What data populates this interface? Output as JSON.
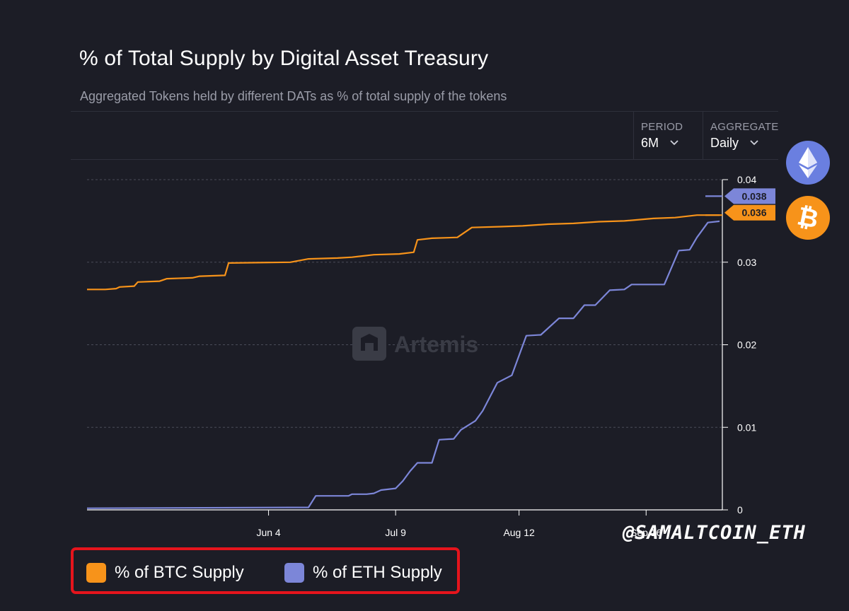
{
  "title": "% of Total Supply by Digital Asset Treasury",
  "subtitle": "Aggregated Tokens held by different DATs as % of total supply of the tokens",
  "controls": {
    "period_label": "PERIOD",
    "period_value": "6M",
    "aggregate_label": "AGGREGATE",
    "aggregate_value": "Daily"
  },
  "watermark": "Artemis",
  "handle": "@SAMALTCOIN_ETH",
  "icons": {
    "eth": "ethereum-logo-icon",
    "btc": "bitcoin-logo-icon",
    "chevron": "chevron-down-icon"
  },
  "legend": {
    "btc_label": "% of BTC Supply",
    "eth_label": "% of ETH Supply"
  },
  "colors": {
    "btc": "#f7931a",
    "eth": "#7c86d8",
    "highlight_box": "#e5141c",
    "background": "#1c1d26"
  },
  "chart_data": {
    "type": "line",
    "title": "% of Total Supply by Digital Asset Treasury",
    "x_tick_labels": [
      "Jun 4",
      "Jul 9",
      "Aug 12",
      "Sep 16"
    ],
    "x_ticks": [
      "2025-06-04",
      "2025-07-09",
      "2025-08-12",
      "2025-09-16"
    ],
    "xlim": [
      "2025-04-15",
      "2025-10-07"
    ],
    "y_tick_labels": [
      "0.04",
      "0.03",
      "0.02",
      "0.01",
      "0"
    ],
    "ylim": [
      0,
      0.04
    ],
    "grid": true,
    "y_axis_side": "right",
    "legend_position": "bottom-left",
    "last_value_labels": {
      "eth": "0.038",
      "btc": "0.036"
    },
    "series": [
      {
        "name": "% of BTC Supply",
        "color": "#f7931a",
        "points": [
          [
            "2025-04-15",
            0.0267
          ],
          [
            "2025-04-20",
            0.0267
          ],
          [
            "2025-04-23",
            0.0268
          ],
          [
            "2025-04-24",
            0.027
          ],
          [
            "2025-04-28",
            0.0271
          ],
          [
            "2025-04-29",
            0.0276
          ],
          [
            "2025-05-05",
            0.0277
          ],
          [
            "2025-05-07",
            0.028
          ],
          [
            "2025-05-14",
            0.0281
          ],
          [
            "2025-05-16",
            0.0283
          ],
          [
            "2025-05-23",
            0.0284
          ],
          [
            "2025-05-24",
            0.0299
          ],
          [
            "2025-06-10",
            0.03
          ],
          [
            "2025-06-15",
            0.0304
          ],
          [
            "2025-06-23",
            0.0305
          ],
          [
            "2025-06-27",
            0.0306
          ],
          [
            "2025-07-03",
            0.0309
          ],
          [
            "2025-07-10",
            0.031
          ],
          [
            "2025-07-14",
            0.0312
          ],
          [
            "2025-07-15",
            0.0327
          ],
          [
            "2025-07-19",
            0.0329
          ],
          [
            "2025-07-26",
            0.033
          ],
          [
            "2025-07-30",
            0.0342
          ],
          [
            "2025-08-07",
            0.0343
          ],
          [
            "2025-08-13",
            0.0344
          ],
          [
            "2025-08-20",
            0.0346
          ],
          [
            "2025-08-27",
            0.0347
          ],
          [
            "2025-09-03",
            0.0349
          ],
          [
            "2025-09-10",
            0.035
          ],
          [
            "2025-09-18",
            0.0353
          ],
          [
            "2025-09-24",
            0.0354
          ],
          [
            "2025-09-30",
            0.0357
          ],
          [
            "2025-10-07",
            0.0357
          ]
        ]
      },
      {
        "name": "% of ETH Supply",
        "color": "#7c86d8",
        "points": [
          [
            "2025-04-15",
            0.0002
          ],
          [
            "2025-06-15",
            0.0003
          ],
          [
            "2025-06-17",
            0.0017
          ],
          [
            "2025-06-26",
            0.0017
          ],
          [
            "2025-06-27",
            0.0019
          ],
          [
            "2025-07-01",
            0.0019
          ],
          [
            "2025-07-03",
            0.002
          ],
          [
            "2025-07-05",
            0.0024
          ],
          [
            "2025-07-09",
            0.0026
          ],
          [
            "2025-07-11",
            0.0035
          ],
          [
            "2025-07-13",
            0.0047
          ],
          [
            "2025-07-15",
            0.0057
          ],
          [
            "2025-07-19",
            0.0057
          ],
          [
            "2025-07-21",
            0.0085
          ],
          [
            "2025-07-25",
            0.0086
          ],
          [
            "2025-07-27",
            0.0097
          ],
          [
            "2025-07-31",
            0.0108
          ],
          [
            "2025-08-02",
            0.012
          ],
          [
            "2025-08-06",
            0.0154
          ],
          [
            "2025-08-10",
            0.0163
          ],
          [
            "2025-08-14",
            0.0211
          ],
          [
            "2025-08-18",
            0.0212
          ],
          [
            "2025-08-23",
            0.0232
          ],
          [
            "2025-08-27",
            0.0232
          ],
          [
            "2025-08-30",
            0.0248
          ],
          [
            "2025-09-02",
            0.0248
          ],
          [
            "2025-09-06",
            0.0266
          ],
          [
            "2025-09-10",
            0.0267
          ],
          [
            "2025-09-12",
            0.0273
          ],
          [
            "2025-09-21",
            0.0273
          ],
          [
            "2025-09-25",
            0.0314
          ],
          [
            "2025-09-28",
            0.0315
          ],
          [
            "2025-09-30",
            0.033
          ],
          [
            "2025-10-03",
            0.0348
          ],
          [
            "2025-10-07",
            0.035
          ],
          [
            "2025-10-07",
            0.038
          ],
          [
            "2025-10-10",
            0.038
          ]
        ]
      }
    ]
  }
}
